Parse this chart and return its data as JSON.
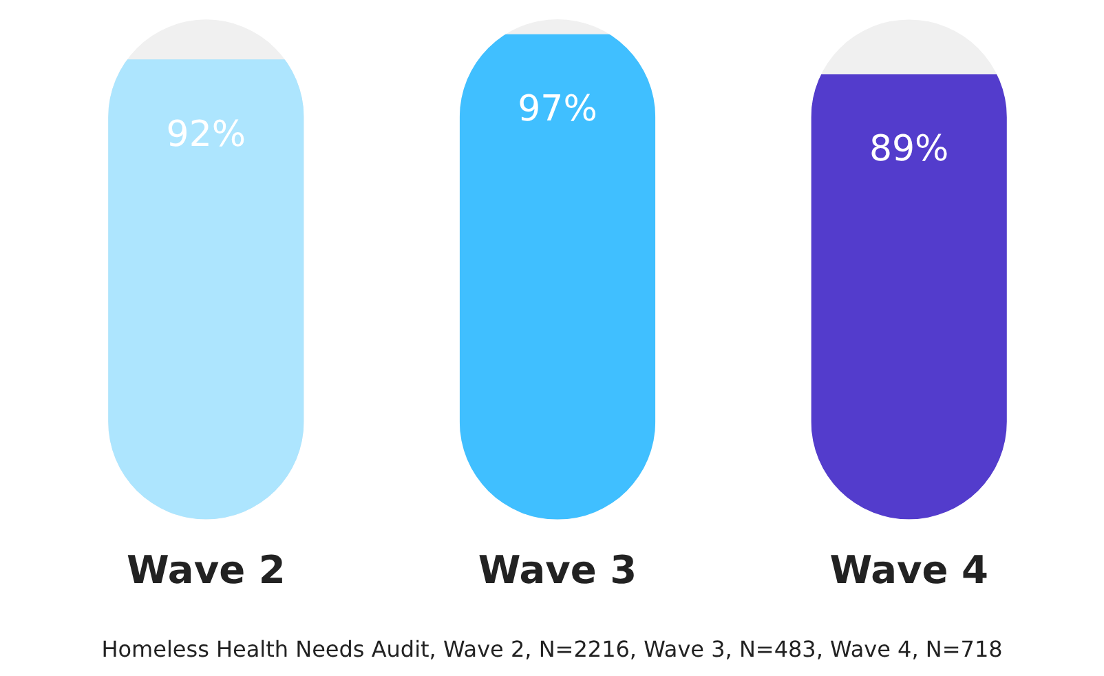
{
  "chart_data": {
    "type": "bar",
    "categories": [
      "Wave 2",
      "Wave 3",
      "Wave 4"
    ],
    "values": [
      92,
      97,
      89
    ],
    "colors": [
      "#ade5fe",
      "#40bfff",
      "#533ccc"
    ],
    "value_labels": [
      "92%",
      "97%",
      "89%"
    ],
    "tick_labels": "x",
    "grid": false,
    "legend": false,
    "annotations": [
      "Homeless Health Needs Audit, Wave 2, N=2216, Wave 3, N=483, Wave 4, N=718"
    ]
  }
}
